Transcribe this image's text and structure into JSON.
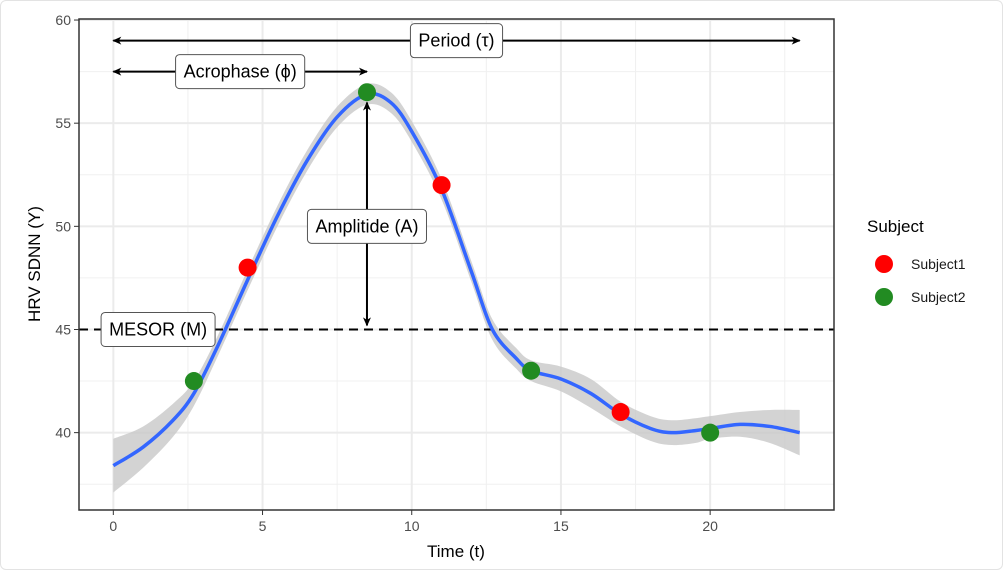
{
  "chart_data": {
    "type": "scatter",
    "xlabel": "Time (t)",
    "ylabel": "HRV SDNN (Y)",
    "xlim": [
      -1.15,
      24.15
    ],
    "ylim": [
      36.25,
      60.05
    ],
    "x_ticks": [
      0,
      5,
      10,
      15,
      20
    ],
    "y_ticks": [
      40,
      45,
      50,
      55,
      60
    ],
    "grid": true,
    "legend": {
      "title": "Subject",
      "placement": "right"
    },
    "series": [
      {
        "name": "Subject1",
        "color": "#ff0000",
        "x": [
          4.5,
          11,
          17
        ],
        "y": [
          48,
          52,
          41
        ]
      },
      {
        "name": "Subject2",
        "color": "#228b22",
        "x": [
          2.7,
          8.5,
          14,
          20
        ],
        "y": [
          42.5,
          56.5,
          43,
          40
        ]
      }
    ],
    "smooth": {
      "color": "#3366ff",
      "ribbon_color": "#c8c8c8",
      "x": [
        0,
        1,
        2,
        2.7,
        3.5,
        4.5,
        5.5,
        6.5,
        7.5,
        8.5,
        9.3,
        10,
        11,
        12,
        12.7,
        13.5,
        14,
        15,
        16,
        17,
        18,
        18.7,
        19.5,
        20,
        21,
        22,
        23
      ],
      "y": [
        38.4,
        39.3,
        40.6,
        41.9,
        44.2,
        47.4,
        50.5,
        53.2,
        55.3,
        56.4,
        56.0,
        54.6,
        51.8,
        47.8,
        45.0,
        43.6,
        43.0,
        42.6,
        41.9,
        40.9,
        40.2,
        40.0,
        40.1,
        40.2,
        40.4,
        40.3,
        40.0
      ],
      "lower": [
        37.1,
        38.3,
        39.8,
        41.3,
        43.7,
        46.9,
        50.0,
        52.7,
        54.8,
        55.9,
        55.5,
        54.1,
        51.3,
        47.3,
        44.5,
        43.1,
        42.5,
        42.0,
        41.2,
        40.3,
        39.6,
        39.4,
        39.5,
        39.7,
        39.8,
        39.5,
        38.9
      ],
      "upper": [
        39.7,
        40.3,
        41.4,
        42.5,
        44.7,
        47.9,
        51.0,
        53.7,
        55.8,
        56.9,
        56.5,
        55.1,
        52.3,
        48.3,
        45.5,
        44.1,
        43.5,
        43.2,
        42.6,
        41.5,
        40.8,
        40.6,
        40.7,
        40.8,
        41.0,
        41.1,
        41.1
      ]
    },
    "mesor_line": {
      "y": 45,
      "style": "dashed"
    },
    "annotations": [
      {
        "label": "Period (τ)",
        "type": "h-arrow",
        "from": 0,
        "to": 23,
        "at": 59,
        "label_x": 11.5
      },
      {
        "label": "Acrophase (ϕ)",
        "type": "h-arrow",
        "from": 0,
        "to": 8.5,
        "at": 57.5,
        "label_x": 4.25
      },
      {
        "label": "Amplitide (A)",
        "type": "v-arrow",
        "from": 56,
        "to": 45.2,
        "at": 8.5,
        "label_y": 50
      },
      {
        "label": "MESOR (M)",
        "type": "label",
        "x": 1.5,
        "y": 45
      }
    ]
  }
}
